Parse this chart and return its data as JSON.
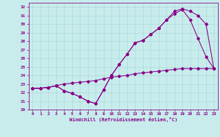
{
  "xlabel": "Windchill (Refroidissement éolien,°C)",
  "bg_color": "#c8ecec",
  "line_color": "#880088",
  "grid_color": "#aadddd",
  "xlim": [
    -0.5,
    23.5
  ],
  "ylim": [
    20,
    32.5
  ],
  "xticks": [
    0,
    1,
    2,
    3,
    4,
    5,
    6,
    7,
    8,
    9,
    10,
    11,
    12,
    13,
    14,
    15,
    16,
    17,
    18,
    19,
    20,
    21,
    22,
    23
  ],
  "yticks": [
    20,
    21,
    22,
    23,
    24,
    25,
    26,
    27,
    28,
    29,
    30,
    31,
    32
  ],
  "line1_x": [
    0,
    1,
    2,
    3,
    4,
    5,
    6,
    7,
    8,
    9,
    10,
    11,
    12,
    13,
    14,
    15,
    16,
    17,
    18,
    19,
    20,
    21,
    22,
    23
  ],
  "line1_y": [
    22.5,
    22.5,
    22.6,
    22.8,
    23.0,
    23.1,
    23.2,
    23.3,
    23.4,
    23.6,
    23.8,
    23.9,
    24.0,
    24.2,
    24.3,
    24.4,
    24.5,
    24.6,
    24.7,
    24.8,
    24.8,
    24.8,
    24.8,
    24.8
  ],
  "line2_x": [
    0,
    1,
    2,
    3,
    4,
    5,
    6,
    7,
    8,
    9,
    10,
    11,
    12,
    13,
    14,
    15,
    16,
    17,
    18,
    19,
    20,
    21,
    22,
    23
  ],
  "line2_y": [
    22.5,
    22.5,
    22.6,
    22.8,
    22.2,
    21.9,
    21.5,
    21.0,
    20.7,
    22.3,
    24.0,
    25.3,
    26.5,
    27.8,
    28.1,
    28.8,
    29.5,
    30.5,
    31.2,
    31.7,
    30.5,
    28.3,
    26.2,
    24.8
  ],
  "line3_x": [
    0,
    1,
    2,
    3,
    4,
    5,
    6,
    7,
    8,
    9,
    10,
    11,
    12,
    13,
    14,
    15,
    16,
    17,
    18,
    19,
    20,
    21,
    22,
    23
  ],
  "line3_y": [
    22.5,
    22.5,
    22.6,
    22.8,
    22.2,
    21.9,
    21.5,
    21.0,
    20.7,
    22.3,
    24.0,
    25.3,
    26.5,
    27.8,
    28.1,
    28.8,
    29.5,
    30.5,
    31.5,
    31.8,
    31.5,
    31.0,
    30.0,
    24.8
  ]
}
